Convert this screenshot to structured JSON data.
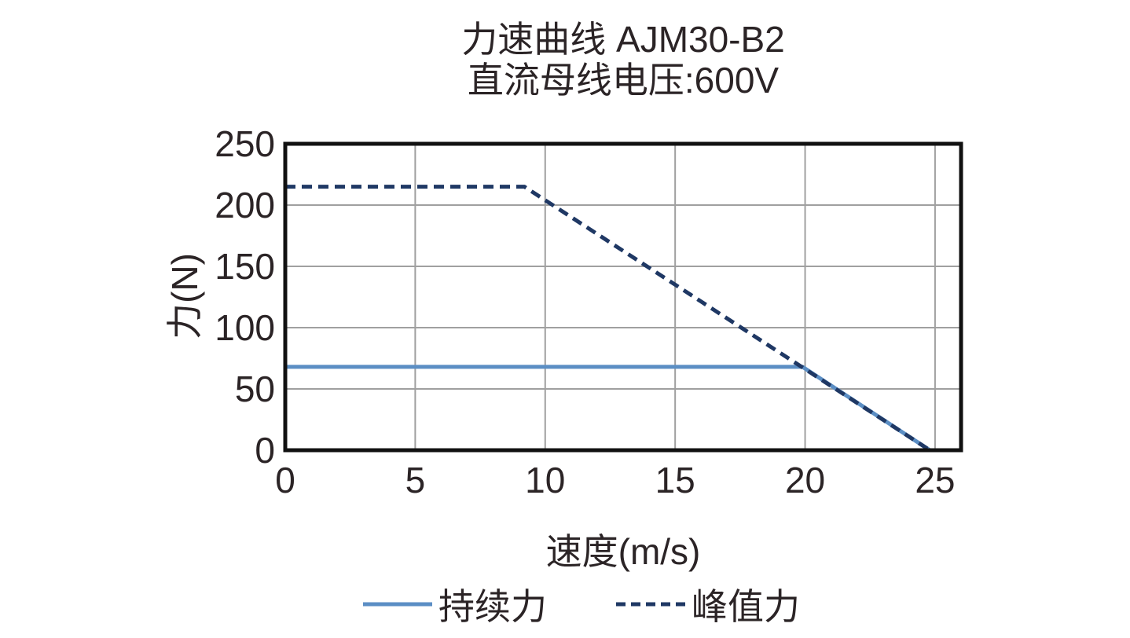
{
  "title": {
    "line1": "力速曲线 AJM30-B2",
    "line2": "直流母线电压:600V"
  },
  "colors": {
    "background": "#FFFFFF",
    "frame": "#111111",
    "grid": "#A0A0A0",
    "text": "#2B2426",
    "continuous_line": "#5B8EC4",
    "peak_line": "#1F3864"
  },
  "chart_data": {
    "type": "line",
    "title": "力速曲线 AJM30-B2",
    "subtitle": "直流母线电压:600V",
    "xlabel": "速度(m/s)",
    "ylabel": "力(N)",
    "xlim": [
      0,
      26
    ],
    "ylim": [
      0,
      250
    ],
    "xticks": [
      0,
      5,
      10,
      15,
      20,
      25
    ],
    "yticks": [
      0,
      50,
      100,
      150,
      200,
      250
    ],
    "grid": true,
    "legend_position": "bottom",
    "series": [
      {
        "id": "continuous",
        "name": "持续力",
        "style": "solid",
        "color": "#5B8EC4",
        "points": [
          [
            0,
            68
          ],
          [
            19.9,
            68
          ],
          [
            24.8,
            0
          ]
        ]
      },
      {
        "id": "peak",
        "name": "峰值力",
        "style": "dashed",
        "color": "#1F3864",
        "points": [
          [
            0,
            215
          ],
          [
            9.2,
            215
          ],
          [
            24.8,
            0
          ]
        ]
      }
    ]
  }
}
